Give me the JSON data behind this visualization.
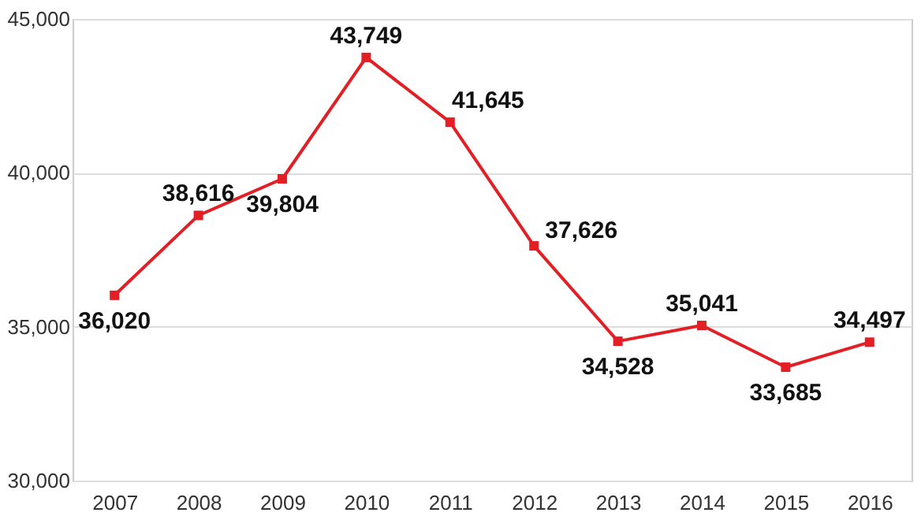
{
  "chart_data": {
    "type": "line",
    "categories": [
      "2007",
      "2008",
      "2009",
      "2010",
      "2011",
      "2012",
      "2013",
      "2014",
      "2015",
      "2016"
    ],
    "series": [
      {
        "color": "#e31e24",
        "values": [
          36020,
          38616,
          39804,
          43749,
          41645,
          37626,
          34528,
          35041,
          33685,
          34497
        ],
        "value_labels": [
          "36,020",
          "38,616",
          "39,804",
          "43,749",
          "41,645",
          "37,626",
          "34,528",
          "35,041",
          "33,685",
          "34,497"
        ]
      }
    ],
    "ylim": [
      30000,
      45000
    ],
    "yticks": [
      {
        "value": 30000,
        "label": "30,000"
      },
      {
        "value": 35000,
        "label": "35,000"
      },
      {
        "value": 40000,
        "label": "40,000"
      },
      {
        "value": 45000,
        "label": "45,000"
      }
    ],
    "grid": "y",
    "marker": "square",
    "line_style": "solid"
  }
}
